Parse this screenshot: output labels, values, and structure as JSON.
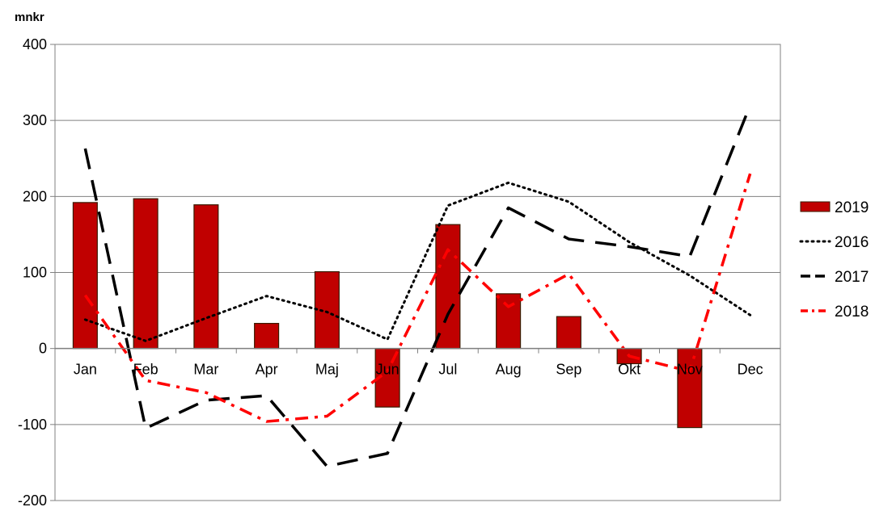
{
  "chart_data": {
    "type": "bar",
    "unit_label": "mnkr",
    "categories": [
      "Jan",
      "Feb",
      "Mar",
      "Apr",
      "Maj",
      "Jun",
      "Jul",
      "Aug",
      "Sep",
      "Okt",
      "Nov",
      "Dec"
    ],
    "ylim": [
      -200,
      400
    ],
    "yticks": [
      "400",
      "300",
      "200",
      "100",
      "0",
      "-100",
      "-200"
    ],
    "ytick_values": [
      400,
      300,
      200,
      100,
      0,
      -100,
      -200
    ],
    "grid": true,
    "legend_position": "right",
    "series": [
      {
        "name": "2019",
        "kind": "bar",
        "color": "#c00000",
        "values": [
          192,
          197,
          189,
          33,
          101,
          -77,
          163,
          72,
          42,
          -20,
          -104,
          null
        ]
      },
      {
        "name": "2016",
        "kind": "line",
        "style": "dotted",
        "color": "#000000",
        "values": [
          38,
          10,
          40,
          69,
          48,
          12,
          188,
          218,
          193,
          140,
          96,
          44
        ]
      },
      {
        "name": "2017",
        "kind": "line",
        "style": "dashed",
        "color": "#000000",
        "values": [
          263,
          -105,
          -68,
          -62,
          -155,
          -138,
          45,
          185,
          144,
          134,
          121,
          320
        ]
      },
      {
        "name": "2018",
        "kind": "line",
        "style": "dashdot",
        "color": "#ff0000",
        "values": [
          70,
          -42,
          -58,
          -96,
          -89,
          -30,
          130,
          55,
          98,
          -10,
          -30,
          230
        ]
      }
    ]
  }
}
